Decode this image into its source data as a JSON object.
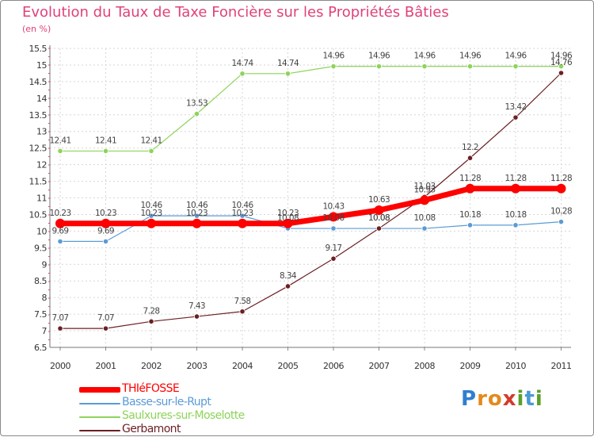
{
  "title": "Evolution du Taux de Taxe Foncière sur les Propriétés Bâties",
  "unit_label": "(en %)",
  "brand": {
    "letters": [
      "P",
      "r",
      "o",
      "x",
      "i",
      "t",
      "i"
    ],
    "colors": [
      "#2f7fd0",
      "#e38a1e",
      "#e38a1e",
      "#d43a2a",
      "#5aa02c",
      "#4a9ad4",
      "#5aa02c"
    ]
  },
  "chart_data": {
    "type": "line",
    "title": "Evolution du Taux de Taxe Foncière sur les Propriétés Bâties",
    "xlabel": "",
    "ylabel": "(en %)",
    "ylim": [
      6.5,
      15.5
    ],
    "yticks": [
      6.5,
      7,
      7.5,
      8,
      8.5,
      9,
      9.5,
      10,
      10.5,
      11,
      11.5,
      12,
      12.5,
      13,
      13.5,
      14,
      14.5,
      15,
      15.5
    ],
    "ytick_labels": [
      "6.5",
      "7",
      "7.5",
      "8",
      "8.5",
      "9",
      "9.5",
      "10",
      "10.5",
      "11",
      "11.5",
      "12",
      "12.5",
      "13",
      "13.5",
      "14",
      "14.5",
      "15",
      "15.5"
    ],
    "grid": true,
    "x": [
      "2000",
      "2001",
      "2002",
      "2003",
      "2004",
      "2005",
      "2006",
      "2007",
      "2008",
      "2009",
      "2010",
      "2011"
    ],
    "series": [
      {
        "name": "THIéFOSSE",
        "color": "#ff0000",
        "values": [
          10.23,
          10.23,
          10.23,
          10.23,
          10.23,
          10.23,
          10.43,
          10.63,
          10.93,
          11.28,
          11.28,
          11.28
        ],
        "labels": [
          "10.23",
          "10.23",
          "10.23",
          "10.23",
          "10.23",
          "10.23",
          "10.43",
          "10.63",
          "10.93",
          "11.28",
          "11.28",
          "11.28"
        ]
      },
      {
        "name": "Basse-sur-le-Rupt",
        "color": "#5b9bd5",
        "values": [
          9.69,
          9.69,
          10.46,
          10.46,
          10.46,
          10.08,
          10.08,
          10.08,
          10.08,
          10.18,
          10.18,
          10.28
        ],
        "labels": [
          "9.69",
          "9.69",
          "10.46",
          "10.46",
          "10.46",
          "10.08",
          "10.08",
          "10.08",
          "10.08",
          "10.18",
          "10.18",
          "10.28"
        ]
      },
      {
        "name": "Saulxures-sur-Moselotte",
        "color": "#8ed35a",
        "values": [
          12.41,
          12.41,
          12.41,
          13.53,
          14.74,
          14.74,
          14.96,
          14.96,
          14.96,
          14.96,
          14.96,
          14.96
        ],
        "labels": [
          "12.41",
          "12.41",
          "12.41",
          "13.53",
          "14.74",
          "14.74",
          "14.96",
          "14.96",
          "14.96",
          "14.96",
          "14.96",
          "14.96"
        ]
      },
      {
        "name": "Gerbamont",
        "color": "#6b1f24",
        "values": [
          7.07,
          7.07,
          7.28,
          7.43,
          7.58,
          8.34,
          9.17,
          10.08,
          11.03,
          12.2,
          13.42,
          14.76
        ],
        "labels": [
          "7.07",
          "7.07",
          "7.28",
          "7.43",
          "7.58",
          "8.34",
          "9.17",
          "10.08",
          "11.03",
          "12.2",
          "13.42",
          "14.76"
        ]
      }
    ],
    "legend": [
      "THIéFOSSE",
      "Basse-sur-le-Rupt",
      "Saulxures-sur-Moselotte",
      "Gerbamont"
    ],
    "legend_position": "bottom-left"
  }
}
